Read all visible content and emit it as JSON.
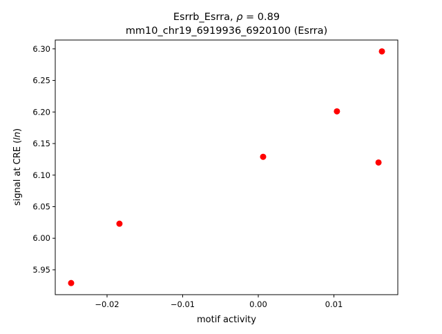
{
  "chart_data": {
    "type": "scatter",
    "title_line1": "Esrrb_Esrra, ρ = 0.89",
    "title_line2": "mm10_chr19_6919936_6920100 (Esrra)",
    "xlabel": "motif activity",
    "ylabel": "signal at CRE (ln)",
    "xlim": [
      -0.02685,
      0.01845
    ],
    "ylim": [
      5.9106,
      6.314
    ],
    "xticks": [
      -0.02,
      -0.01,
      0.0,
      0.01
    ],
    "xtick_labels": [
      "−0.02",
      "−0.01",
      "0.00",
      "0.01"
    ],
    "yticks": [
      5.95,
      6.0,
      6.05,
      6.1,
      6.15,
      6.2,
      6.25,
      6.3
    ],
    "ytick_labels": [
      "5.95",
      "6.00",
      "6.05",
      "6.10",
      "6.15",
      "6.20",
      "6.25",
      "6.30"
    ],
    "grid": false,
    "marker_color": "#ff0000",
    "points": [
      {
        "x": -0.02475,
        "y": 5.929
      },
      {
        "x": -0.01836,
        "y": 6.023
      },
      {
        "x": 0.00064,
        "y": 6.129
      },
      {
        "x": 0.0104,
        "y": 6.201
      },
      {
        "x": 0.0159,
        "y": 6.12
      },
      {
        "x": 0.01635,
        "y": 6.296
      }
    ]
  }
}
